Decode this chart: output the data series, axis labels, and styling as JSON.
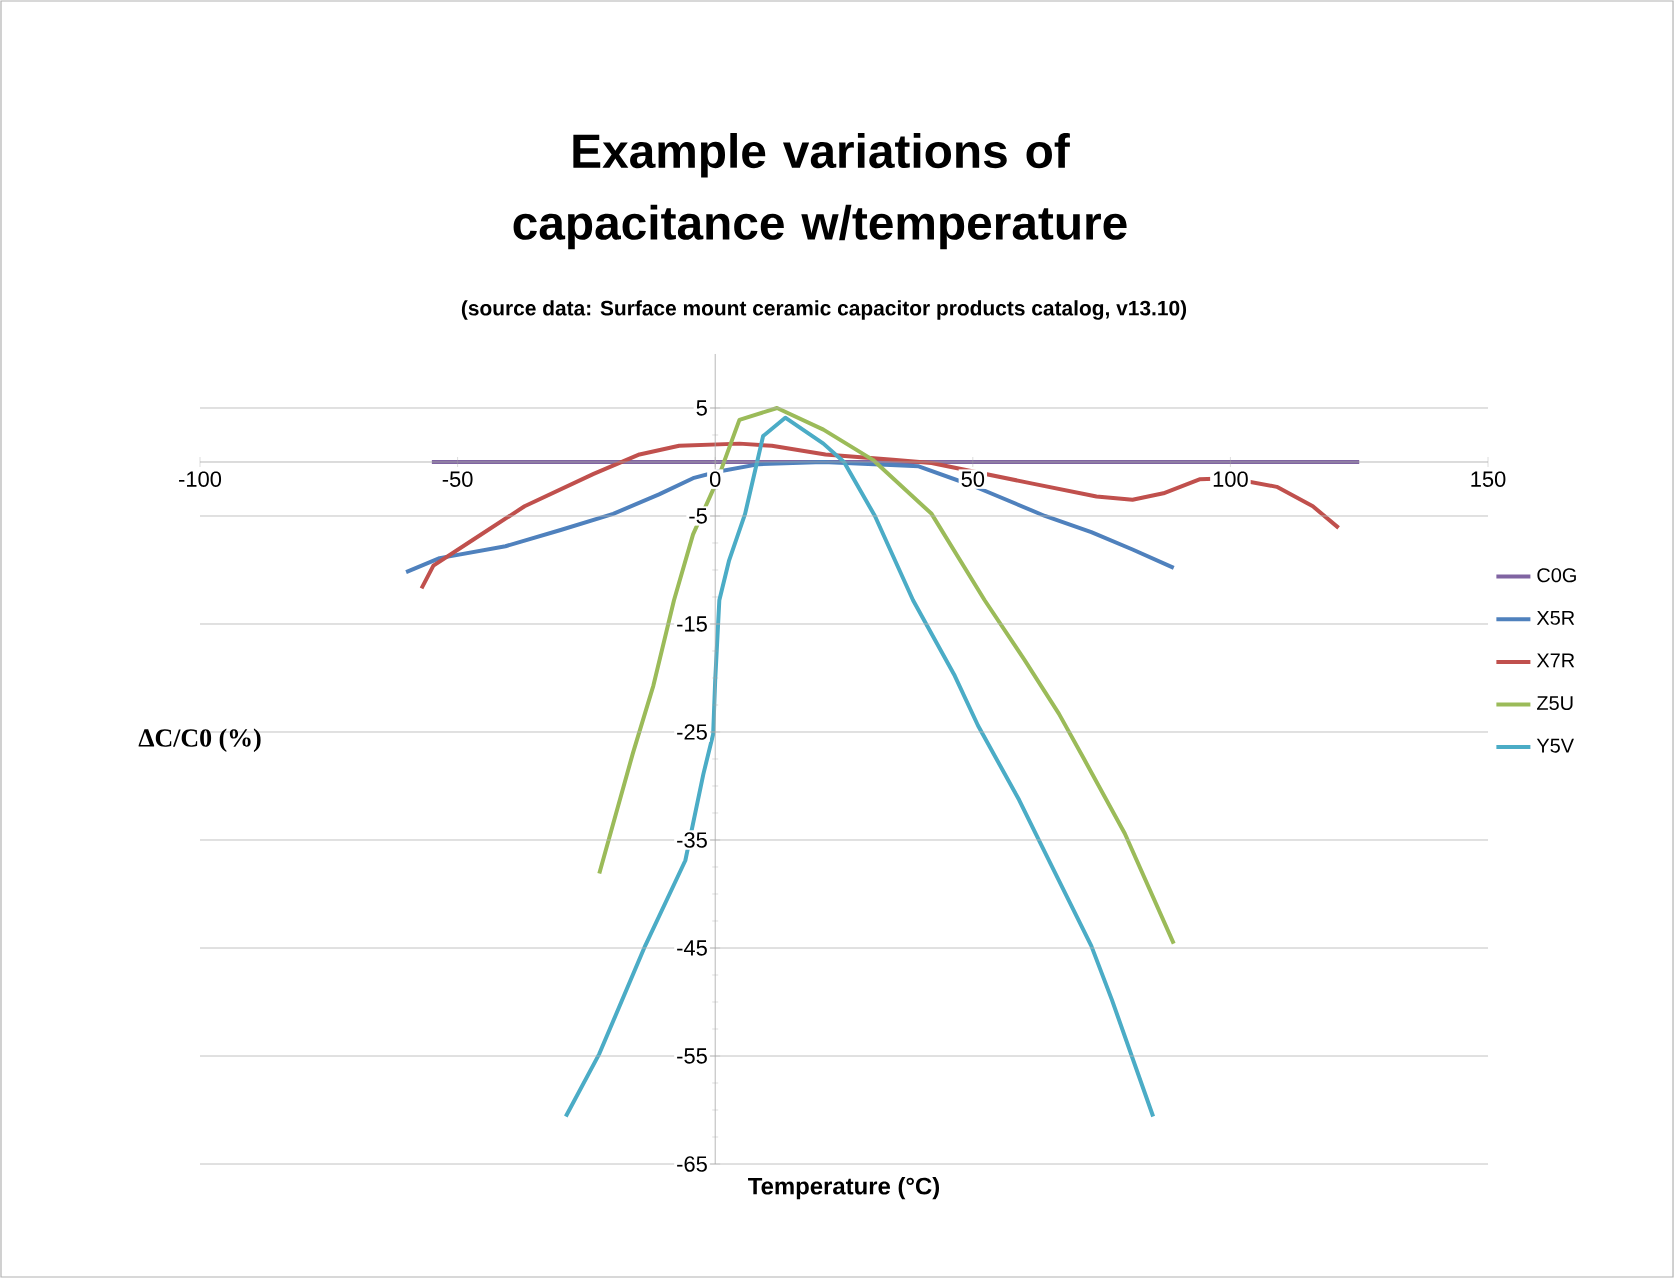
{
  "chart_data": {
    "type": "line",
    "title": "Example variations of capacitance w/temperature",
    "subtitle": "(source data: Surface mount ceramic capacitor products catalog, v13.10)",
    "xlabel": "Temperature (°C)",
    "ylabel": "ΔC/C0 (%)",
    "xlim": [
      -100,
      150
    ],
    "xticks": [
      -100,
      -50,
      0,
      50,
      100,
      150
    ],
    "ylim": [
      -65,
      10
    ],
    "yticks": [
      -65,
      -55,
      -45,
      -35,
      -25,
      -15,
      -5,
      5
    ],
    "grid": "y",
    "legend": "right",
    "marker": "none",
    "line_style": "solid",
    "series": [
      {
        "name": "C0G",
        "color": "#8064a2",
        "x": [
          -55,
          125
        ],
        "values": [
          0,
          0
        ]
      },
      {
        "name": "X5R",
        "color": "#4f81bd",
        "x": [
          -60,
          -53.5,
          -40.7,
          -30,
          -19.8,
          -10.9,
          -4.3,
          0.4,
          8.5,
          21,
          39.5,
          50,
          64,
          73,
          81,
          89
        ],
        "values": [
          -10.2,
          -8.9,
          -7.8,
          -6.3,
          -4.8,
          -3.0,
          -1.5,
          -0.9,
          -0.2,
          0,
          -0.4,
          -2.2,
          -5.0,
          -6.5,
          -8.1,
          -9.8
        ]
      },
      {
        "name": "X7R",
        "color": "#c0504d",
        "x": [
          -57,
          -54.7,
          -47,
          -37,
          -23.6,
          -14.7,
          -7,
          4.7,
          11,
          21.4,
          34.5,
          42,
          61.6,
          74,
          81,
          87,
          94,
          100,
          109,
          116,
          121
        ],
        "values": [
          -11.7,
          -9.6,
          -7.2,
          -4.1,
          -1.1,
          0.7,
          1.5,
          1.7,
          1.5,
          0.7,
          0.2,
          -0.1,
          -2.0,
          -3.2,
          -3.5,
          -2.9,
          -1.6,
          -1.5,
          -2.3,
          -4.1,
          -6.1
        ]
      },
      {
        "name": "Z5U",
        "color": "#9bbb59",
        "x": [
          -22.5,
          -16,
          -12,
          -8,
          -4.3,
          0.4,
          4.7,
          12,
          21,
          30.6,
          42,
          52.3,
          60,
          66.7,
          71.7,
          79.5,
          89
        ],
        "values": [
          -38.1,
          -27,
          -20.7,
          -12.8,
          -6.7,
          -1.7,
          3.9,
          5.0,
          3.0,
          0.2,
          -4.8,
          -12.8,
          -18.3,
          -23.3,
          -27.6,
          -34.4,
          -44.6
        ]
      },
      {
        "name": "Y5V",
        "color": "#4bacc6",
        "x": [
          -29,
          -22.5,
          -13.6,
          -5.8,
          -2.3,
          -0.4,
          0,
          0.8,
          2.7,
          5.8,
          9.3,
          13.6,
          21,
          25,
          31,
          38.4,
          46.5,
          51,
          59,
          62.8,
          73,
          77,
          85
        ],
        "values": [
          -60.6,
          -54.8,
          -44.8,
          -36.9,
          -28.9,
          -25.2,
          -20.2,
          -12.8,
          -9.1,
          -4.8,
          2.4,
          4.1,
          1.7,
          0,
          -5,
          -12.8,
          -19.8,
          -24.4,
          -31.3,
          -35,
          -44.8,
          -49.8,
          -60.6
        ]
      }
    ]
  }
}
